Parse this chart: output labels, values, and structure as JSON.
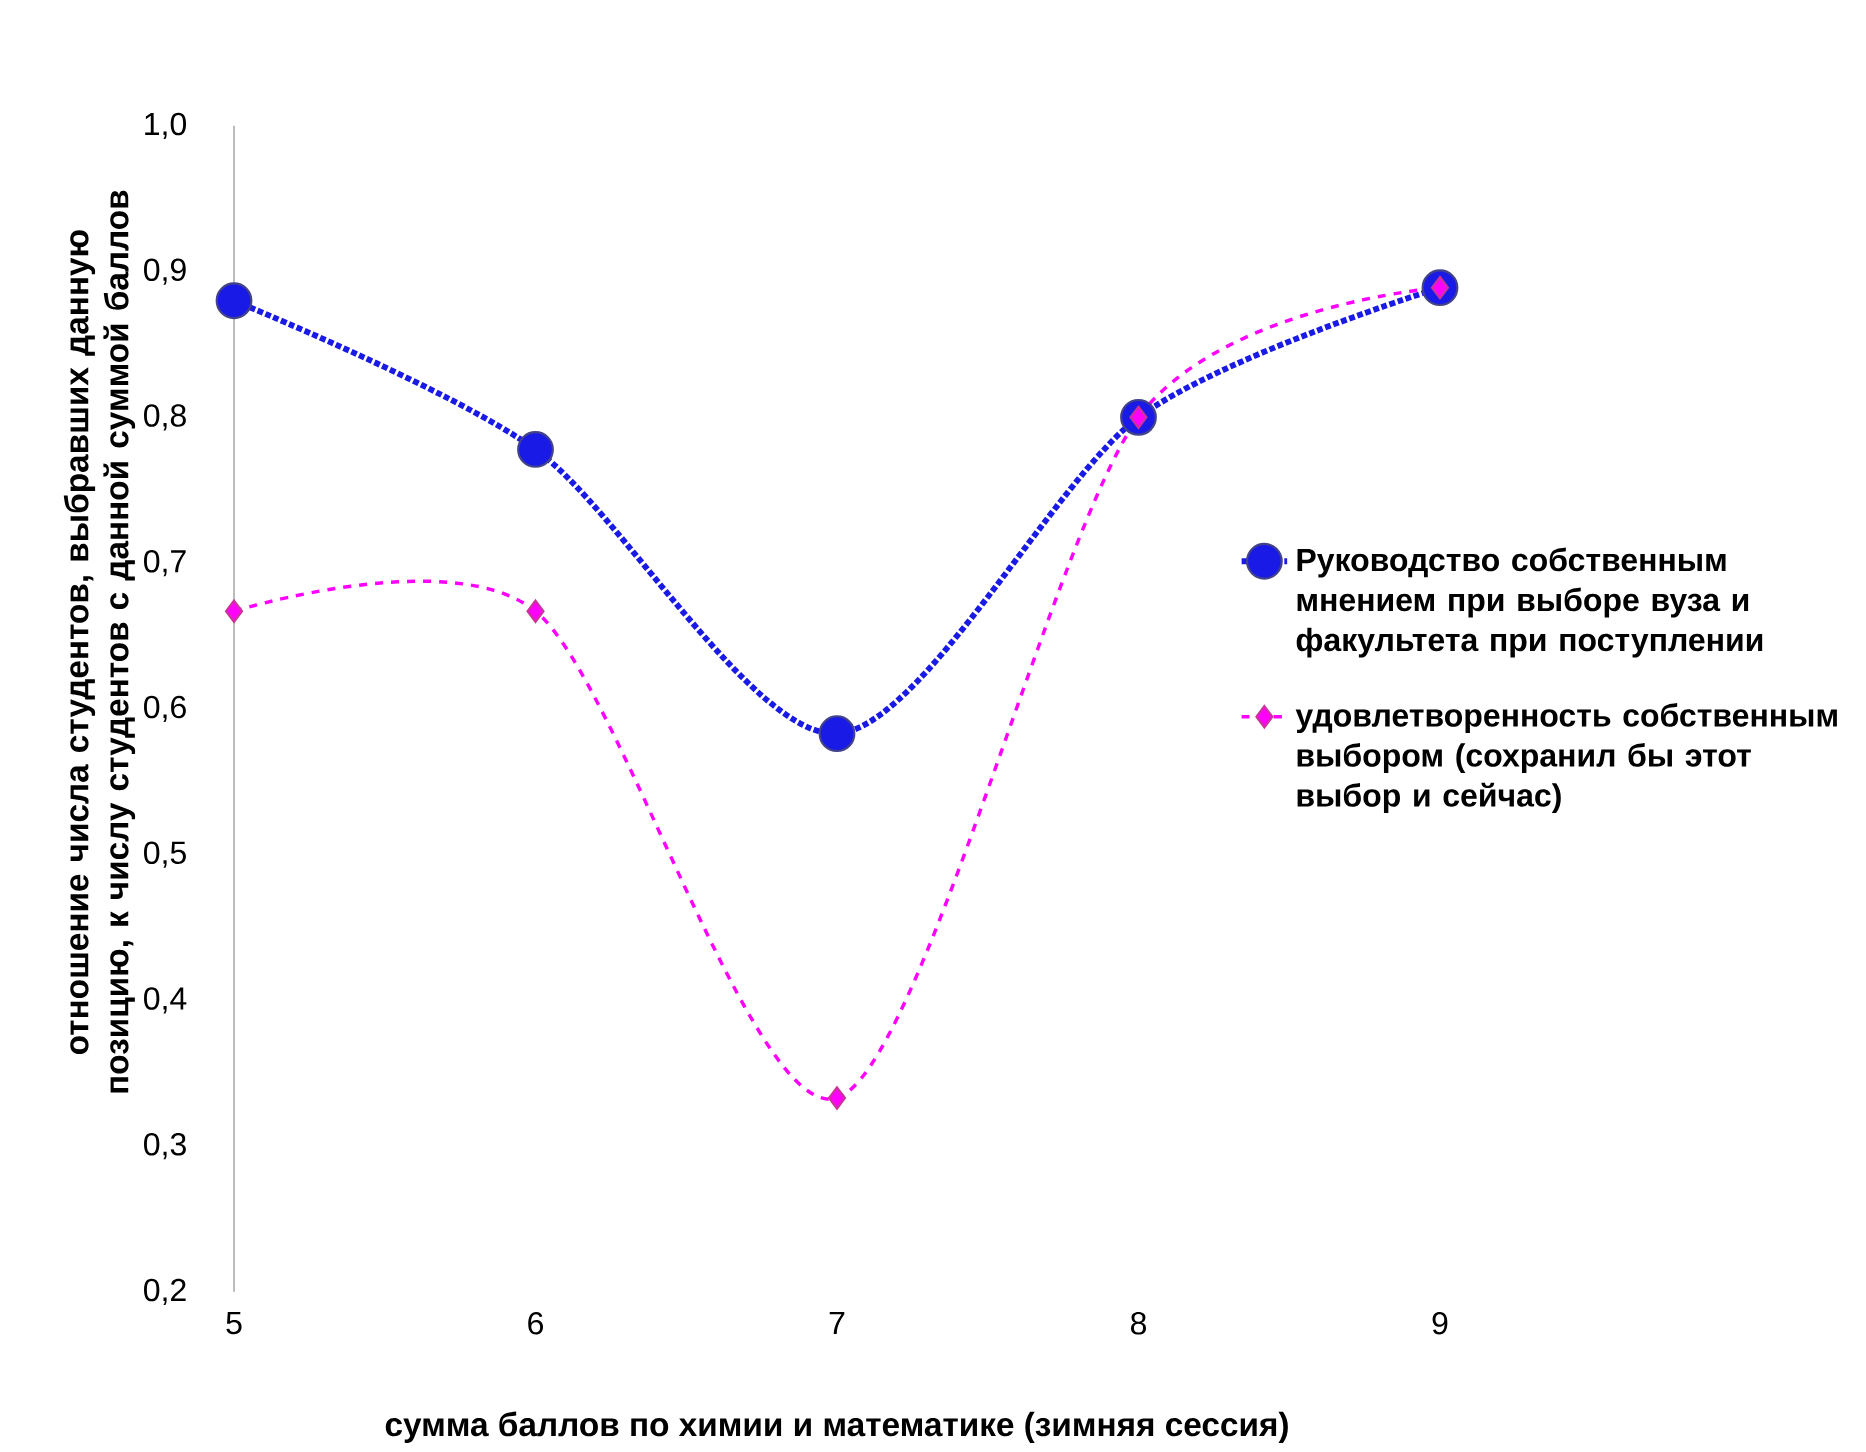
{
  "chart_data": {
    "type": "line",
    "xlabel": "сумма баллов по химии и математике (зимняя сессия)",
    "ylabel": "отношение  числа студентов, выбравших данную позицию, к числу студентов  с данной суммой баллов",
    "x": [
      5,
      6,
      7,
      8,
      9
    ],
    "series": [
      {
        "name": "Руководство собственным мнением при выборе вуза  и  факультета при поступлении",
        "color": "#1a1ae6",
        "marker": "circle",
        "line_style": "dotted",
        "values": [
          0.88,
          0.778,
          0.583,
          0.8,
          0.889
        ]
      },
      {
        "name": "удовлетворенность собственным выбором (сохранил бы этот выбор и сейчас)",
        "color": "#ff00ff",
        "marker": "diamond",
        "line_style": "dashed",
        "values": [
          0.667,
          0.667,
          0.333,
          0.8,
          0.889
        ]
      }
    ],
    "xlim": [
      5,
      9
    ],
    "xticks": [
      5,
      6,
      7,
      8,
      9
    ],
    "ylim": [
      0.2,
      1.0
    ],
    "yticks": [
      {
        "value": 0.2,
        "label": "0,2"
      },
      {
        "value": 0.3,
        "label": "0,3"
      },
      {
        "value": 0.4,
        "label": "0,4"
      },
      {
        "value": 0.5,
        "label": "0,5"
      },
      {
        "value": 0.6,
        "label": "0,6"
      },
      {
        "value": 0.7,
        "label": "0,7"
      },
      {
        "value": 0.8,
        "label": "0,8"
      },
      {
        "value": 0.9,
        "label": "0,9"
      },
      {
        "value": 1.0,
        "label": "1,0"
      }
    ],
    "grid": false,
    "legend": "right"
  }
}
